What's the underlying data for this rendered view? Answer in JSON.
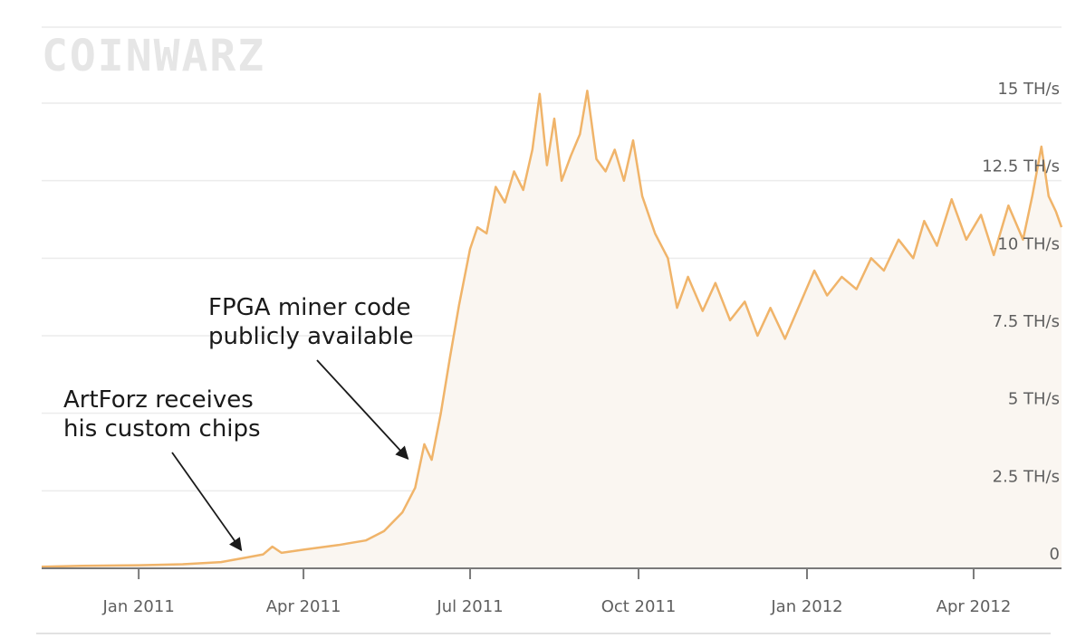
{
  "watermark": "COINWARZ",
  "colors": {
    "line": "#f0b46a",
    "fill": "#faf6f1",
    "grid": "#ececec",
    "axis": "#7a7a7a",
    "tick_text": "#5f5f5f",
    "annotation": "#1a1a1a"
  },
  "chart_data": {
    "type": "area",
    "title": "",
    "xlabel": "",
    "ylabel": "",
    "y_unit": "TH/s",
    "ylim": [
      0,
      15
    ],
    "yticks": [
      {
        "value": 0,
        "label": "0"
      },
      {
        "value": 2.5,
        "label": "2.5 TH/s"
      },
      {
        "value": 5,
        "label": "5 TH/s"
      },
      {
        "value": 7.5,
        "label": "7.5 TH/s"
      },
      {
        "value": 10,
        "label": "10 TH/s"
      },
      {
        "value": 12.5,
        "label": "12.5 TH/s"
      },
      {
        "value": 15,
        "label": "15 TH/s"
      }
    ],
    "xlim": [
      "2010-11-09",
      "2012-05-19"
    ],
    "xticks": [
      {
        "date": "2011-01-01",
        "label": "Jan 2011"
      },
      {
        "date": "2011-04-01",
        "label": "Apr 2011"
      },
      {
        "date": "2011-07-01",
        "label": "Jul 2011"
      },
      {
        "date": "2011-10-01",
        "label": "Oct 2011"
      },
      {
        "date": "2012-01-01",
        "label": "Jan 2012"
      },
      {
        "date": "2012-04-01",
        "label": "Apr 2012"
      }
    ],
    "grid": true,
    "series": [
      {
        "name": "",
        "points": [
          [
            "2010-11-09",
            0.05
          ],
          [
            "2010-12-01",
            0.08
          ],
          [
            "2011-01-01",
            0.1
          ],
          [
            "2011-01-25",
            0.13
          ],
          [
            "2011-02-15",
            0.2
          ],
          [
            "2011-03-01",
            0.35
          ],
          [
            "2011-03-10",
            0.45
          ],
          [
            "2011-03-15",
            0.7
          ],
          [
            "2011-03-20",
            0.5
          ],
          [
            "2011-04-01",
            0.6
          ],
          [
            "2011-04-20",
            0.75
          ],
          [
            "2011-05-05",
            0.9
          ],
          [
            "2011-05-15",
            1.2
          ],
          [
            "2011-05-25",
            1.8
          ],
          [
            "2011-06-01",
            2.6
          ],
          [
            "2011-06-06",
            4.0
          ],
          [
            "2011-06-10",
            3.5
          ],
          [
            "2011-06-15",
            5.0
          ],
          [
            "2011-06-20",
            6.8
          ],
          [
            "2011-06-25",
            8.5
          ],
          [
            "2011-07-01",
            10.3
          ],
          [
            "2011-07-05",
            11.0
          ],
          [
            "2011-07-10",
            10.8
          ],
          [
            "2011-07-15",
            12.3
          ],
          [
            "2011-07-20",
            11.8
          ],
          [
            "2011-07-25",
            12.8
          ],
          [
            "2011-07-30",
            12.2
          ],
          [
            "2011-08-04",
            13.5
          ],
          [
            "2011-08-08",
            15.3
          ],
          [
            "2011-08-12",
            13.0
          ],
          [
            "2011-08-16",
            14.5
          ],
          [
            "2011-08-20",
            12.5
          ],
          [
            "2011-08-25",
            13.3
          ],
          [
            "2011-08-30",
            14.0
          ],
          [
            "2011-09-03",
            15.4
          ],
          [
            "2011-09-08",
            13.2
          ],
          [
            "2011-09-13",
            12.8
          ],
          [
            "2011-09-18",
            13.5
          ],
          [
            "2011-09-23",
            12.5
          ],
          [
            "2011-09-28",
            13.8
          ],
          [
            "2011-10-03",
            12.0
          ],
          [
            "2011-10-10",
            10.8
          ],
          [
            "2011-10-17",
            10.0
          ],
          [
            "2011-10-22",
            8.4
          ],
          [
            "2011-10-28",
            9.4
          ],
          [
            "2011-11-05",
            8.3
          ],
          [
            "2011-11-12",
            9.2
          ],
          [
            "2011-11-20",
            8.0
          ],
          [
            "2011-11-28",
            8.6
          ],
          [
            "2011-12-05",
            7.5
          ],
          [
            "2011-12-12",
            8.4
          ],
          [
            "2011-12-20",
            7.4
          ],
          [
            "2011-12-28",
            8.5
          ],
          [
            "2012-01-05",
            9.6
          ],
          [
            "2012-01-12",
            8.8
          ],
          [
            "2012-01-20",
            9.4
          ],
          [
            "2012-01-28",
            9.0
          ],
          [
            "2012-02-05",
            10.0
          ],
          [
            "2012-02-12",
            9.6
          ],
          [
            "2012-02-20",
            10.6
          ],
          [
            "2012-02-28",
            10.0
          ],
          [
            "2012-03-05",
            11.2
          ],
          [
            "2012-03-12",
            10.4
          ],
          [
            "2012-03-20",
            11.9
          ],
          [
            "2012-03-28",
            10.6
          ],
          [
            "2012-04-05",
            11.4
          ],
          [
            "2012-04-12",
            10.1
          ],
          [
            "2012-04-20",
            11.7
          ],
          [
            "2012-04-28",
            10.6
          ],
          [
            "2012-05-03",
            12.0
          ],
          [
            "2012-05-08",
            13.6
          ],
          [
            "2012-05-12",
            12.0
          ],
          [
            "2012-05-16",
            11.5
          ],
          [
            "2012-05-19",
            11.0
          ]
        ]
      }
    ],
    "annotations": [
      {
        "lines": [
          "ArtForz receives",
          "his custom chips"
        ],
        "date": "2011-03-01",
        "value": 0.35
      },
      {
        "lines": [
          "FPGA miner code",
          "publicly available"
        ],
        "date": "2011-05-31",
        "value": 3.3
      }
    ]
  }
}
